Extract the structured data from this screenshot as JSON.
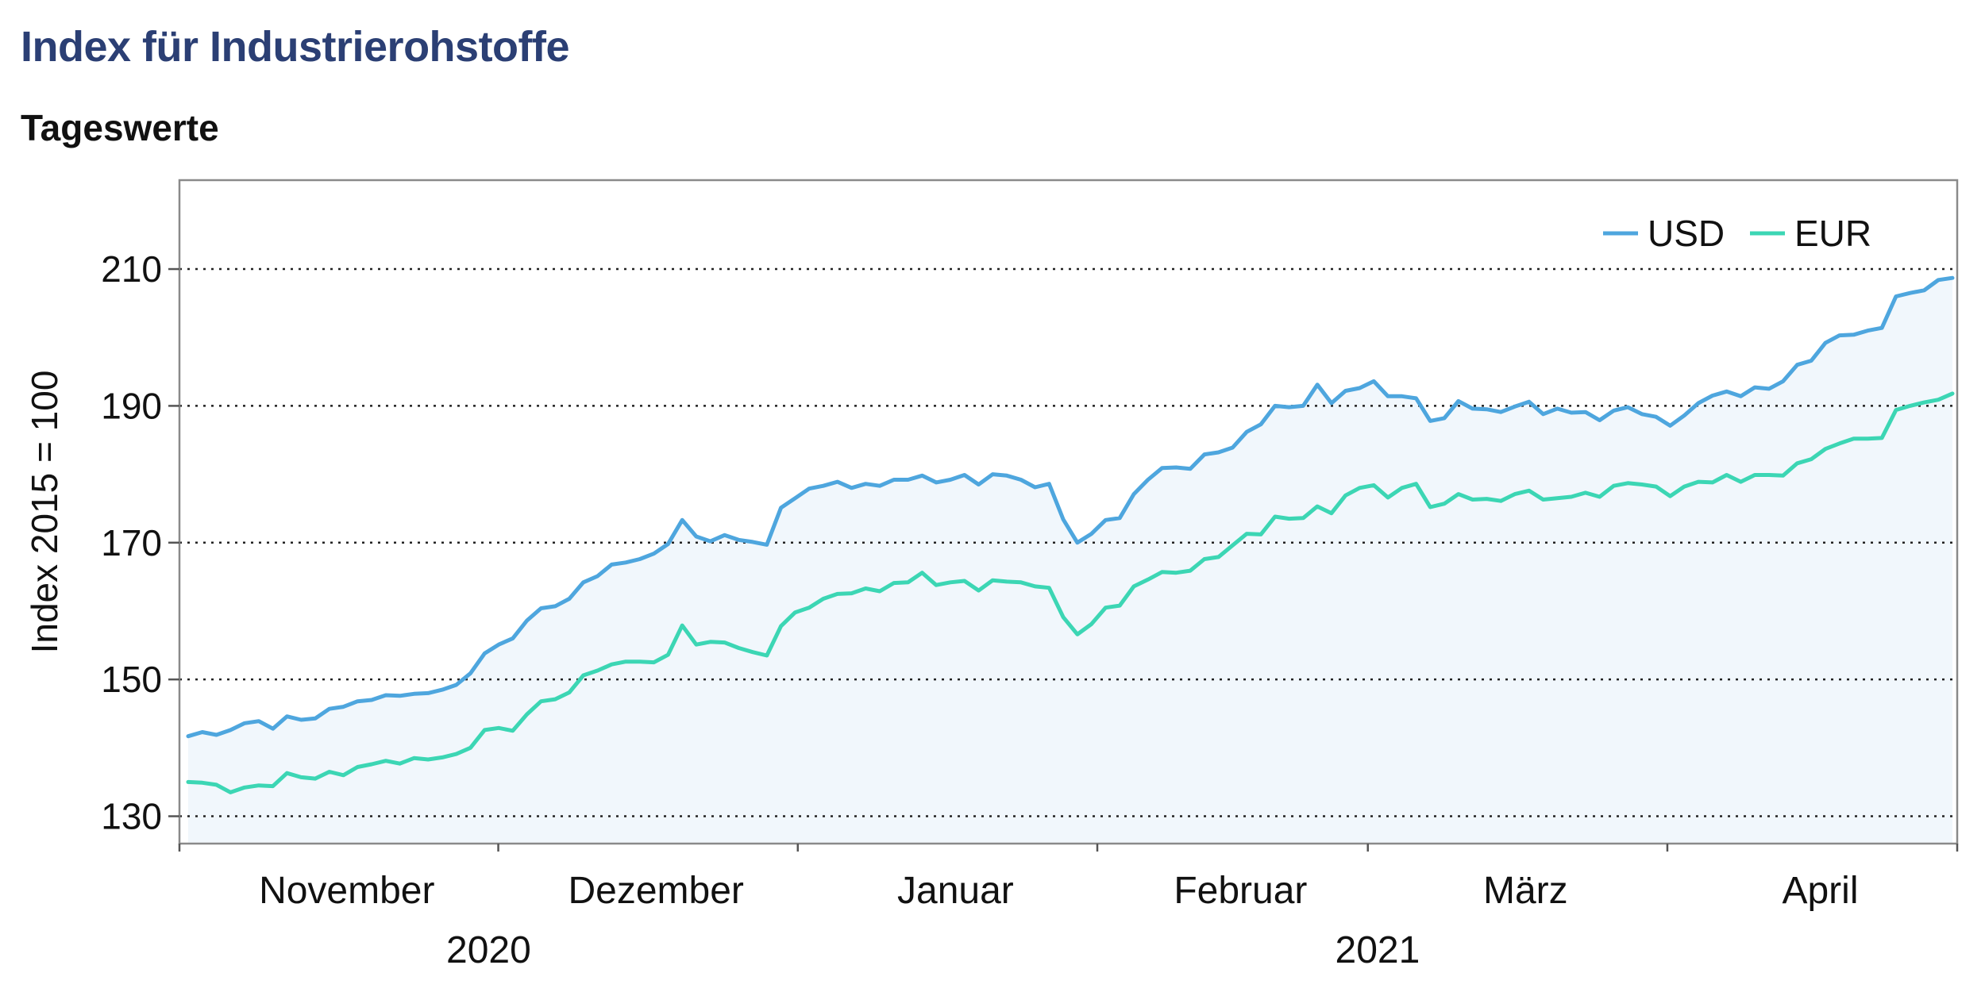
{
  "title": "Index für Industrierohstoffe",
  "subtitle": "Tageswerte",
  "chart_data": {
    "type": "line",
    "ylabel": "Index 2015 = 100",
    "ylim": [
      126,
      223
    ],
    "yticks": [
      130,
      150,
      170,
      190,
      210
    ],
    "grid": "horizontal dotted",
    "legend": "top-right",
    "months": [
      "November",
      "Dezember",
      "Januar",
      "Februar",
      "März",
      "April"
    ],
    "years": [
      "2020",
      "2021"
    ],
    "x_start": "2020-10-28",
    "x_end": "2021-04-30",
    "series": [
      {
        "name": "USD",
        "color": "#4ea6de",
        "values": [
          141.7,
          142.3,
          141.9,
          142.6,
          143.6,
          143.9,
          142.8,
          144.6,
          144.1,
          144.3,
          145.7,
          146.0,
          146.8,
          147.0,
          147.7,
          147.6,
          147.9,
          148.0,
          148.5,
          149.2,
          150.9,
          153.8,
          155.1,
          156.0,
          158.6,
          160.4,
          160.7,
          161.8,
          164.2,
          165.1,
          166.8,
          167.1,
          167.6,
          168.4,
          169.8,
          173.3,
          170.9,
          170.2,
          171.1,
          170.4,
          170.1,
          169.7,
          175.1,
          176.5,
          177.9,
          178.3,
          178.9,
          178.0,
          178.6,
          178.3,
          179.2,
          179.2,
          179.8,
          178.8,
          179.2,
          179.9,
          178.5,
          180.0,
          179.8,
          179.2,
          178.1,
          178.6,
          173.4,
          170.0,
          171.3,
          173.3,
          173.6,
          177.1,
          179.2,
          180.9,
          181.0,
          180.8,
          182.9,
          183.2,
          183.9,
          186.2,
          187.3,
          190.0,
          189.8,
          190.0,
          193.1,
          190.4,
          192.2,
          192.6,
          193.6,
          191.4,
          191.4,
          191.1,
          187.8,
          188.2,
          190.7,
          189.6,
          189.5,
          189.1,
          189.9,
          190.6,
          188.8,
          189.6,
          189.0,
          189.1,
          187.9,
          189.3,
          189.8,
          188.8,
          188.4,
          187.1,
          188.6,
          190.4,
          191.5,
          192.1,
          191.4,
          192.7,
          192.5,
          193.6,
          196.0,
          196.6,
          199.2,
          200.3,
          200.4,
          201.0,
          201.4,
          206.0,
          206.5,
          206.9,
          208.4,
          208.7
        ]
      },
      {
        "name": "EUR",
        "color": "#3cd6b4",
        "values": [
          135.0,
          134.9,
          134.6,
          133.5,
          134.2,
          134.5,
          134.4,
          136.3,
          135.7,
          135.5,
          136.5,
          136.0,
          137.2,
          137.6,
          138.1,
          137.7,
          138.5,
          138.3,
          138.6,
          139.1,
          140.0,
          142.6,
          142.9,
          142.5,
          144.9,
          146.8,
          147.1,
          148.1,
          150.6,
          151.3,
          152.2,
          152.6,
          152.6,
          152.5,
          153.6,
          157.9,
          155.1,
          155.5,
          155.4,
          154.6,
          154.0,
          153.5,
          157.8,
          159.8,
          160.5,
          161.8,
          162.5,
          162.6,
          163.3,
          162.9,
          164.1,
          164.2,
          165.6,
          163.8,
          164.2,
          164.4,
          163.0,
          164.5,
          164.3,
          164.2,
          163.6,
          163.4,
          159.1,
          156.6,
          158.1,
          160.5,
          160.8,
          163.6,
          164.6,
          165.7,
          165.6,
          165.9,
          167.6,
          167.9,
          169.6,
          171.3,
          171.2,
          173.8,
          173.5,
          173.6,
          175.3,
          174.3,
          176.9,
          178.0,
          178.4,
          176.6,
          178.0,
          178.6,
          175.2,
          175.7,
          177.1,
          176.3,
          176.4,
          176.1,
          177.1,
          177.6,
          176.3,
          176.5,
          176.7,
          177.3,
          176.7,
          178.3,
          178.7,
          178.5,
          178.2,
          176.8,
          178.2,
          178.9,
          178.8,
          179.9,
          178.9,
          179.9,
          179.9,
          179.8,
          181.6,
          182.2,
          183.7,
          184.5,
          185.2,
          185.2,
          185.3,
          189.4,
          190.0,
          190.5,
          190.9,
          191.8
        ]
      }
    ]
  }
}
